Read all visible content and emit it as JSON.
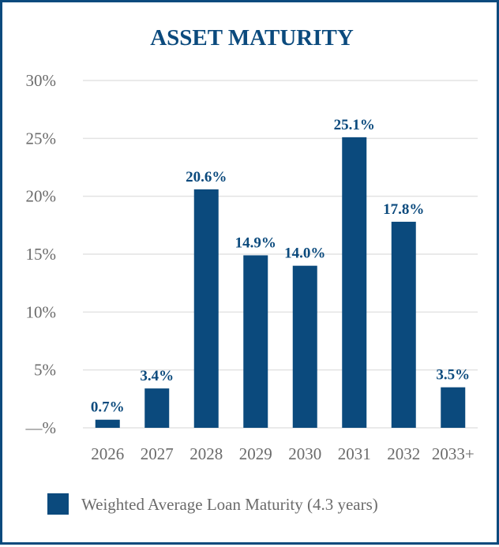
{
  "colors": {
    "accent": "#0b4a7d",
    "grid": "#e3e3e3",
    "tick": "#6b6b6b"
  },
  "chart_data": {
    "type": "bar",
    "title": "ASSET MATURITY",
    "categories": [
      "2026",
      "2027",
      "2028",
      "2029",
      "2030",
      "2031",
      "2032",
      "2033+"
    ],
    "series": [
      {
        "name": "Weighted Average Loan Maturity (4.3 years)",
        "values": [
          0.7,
          3.4,
          20.6,
          14.9,
          14.0,
          25.1,
          17.8,
          3.5
        ]
      }
    ],
    "data_labels": [
      "0.7%",
      "3.4%",
      "20.6%",
      "14.9%",
      "14.0%",
      "25.1%",
      "17.8%",
      "3.5%"
    ],
    "yticks": [
      0,
      5,
      10,
      15,
      20,
      25,
      30
    ],
    "ytick_labels": [
      "—%",
      "5%",
      "10%",
      "15%",
      "20%",
      "25%",
      "30%"
    ],
    "ylim": [
      0,
      30
    ],
    "grid": true,
    "legend": "bottom"
  }
}
